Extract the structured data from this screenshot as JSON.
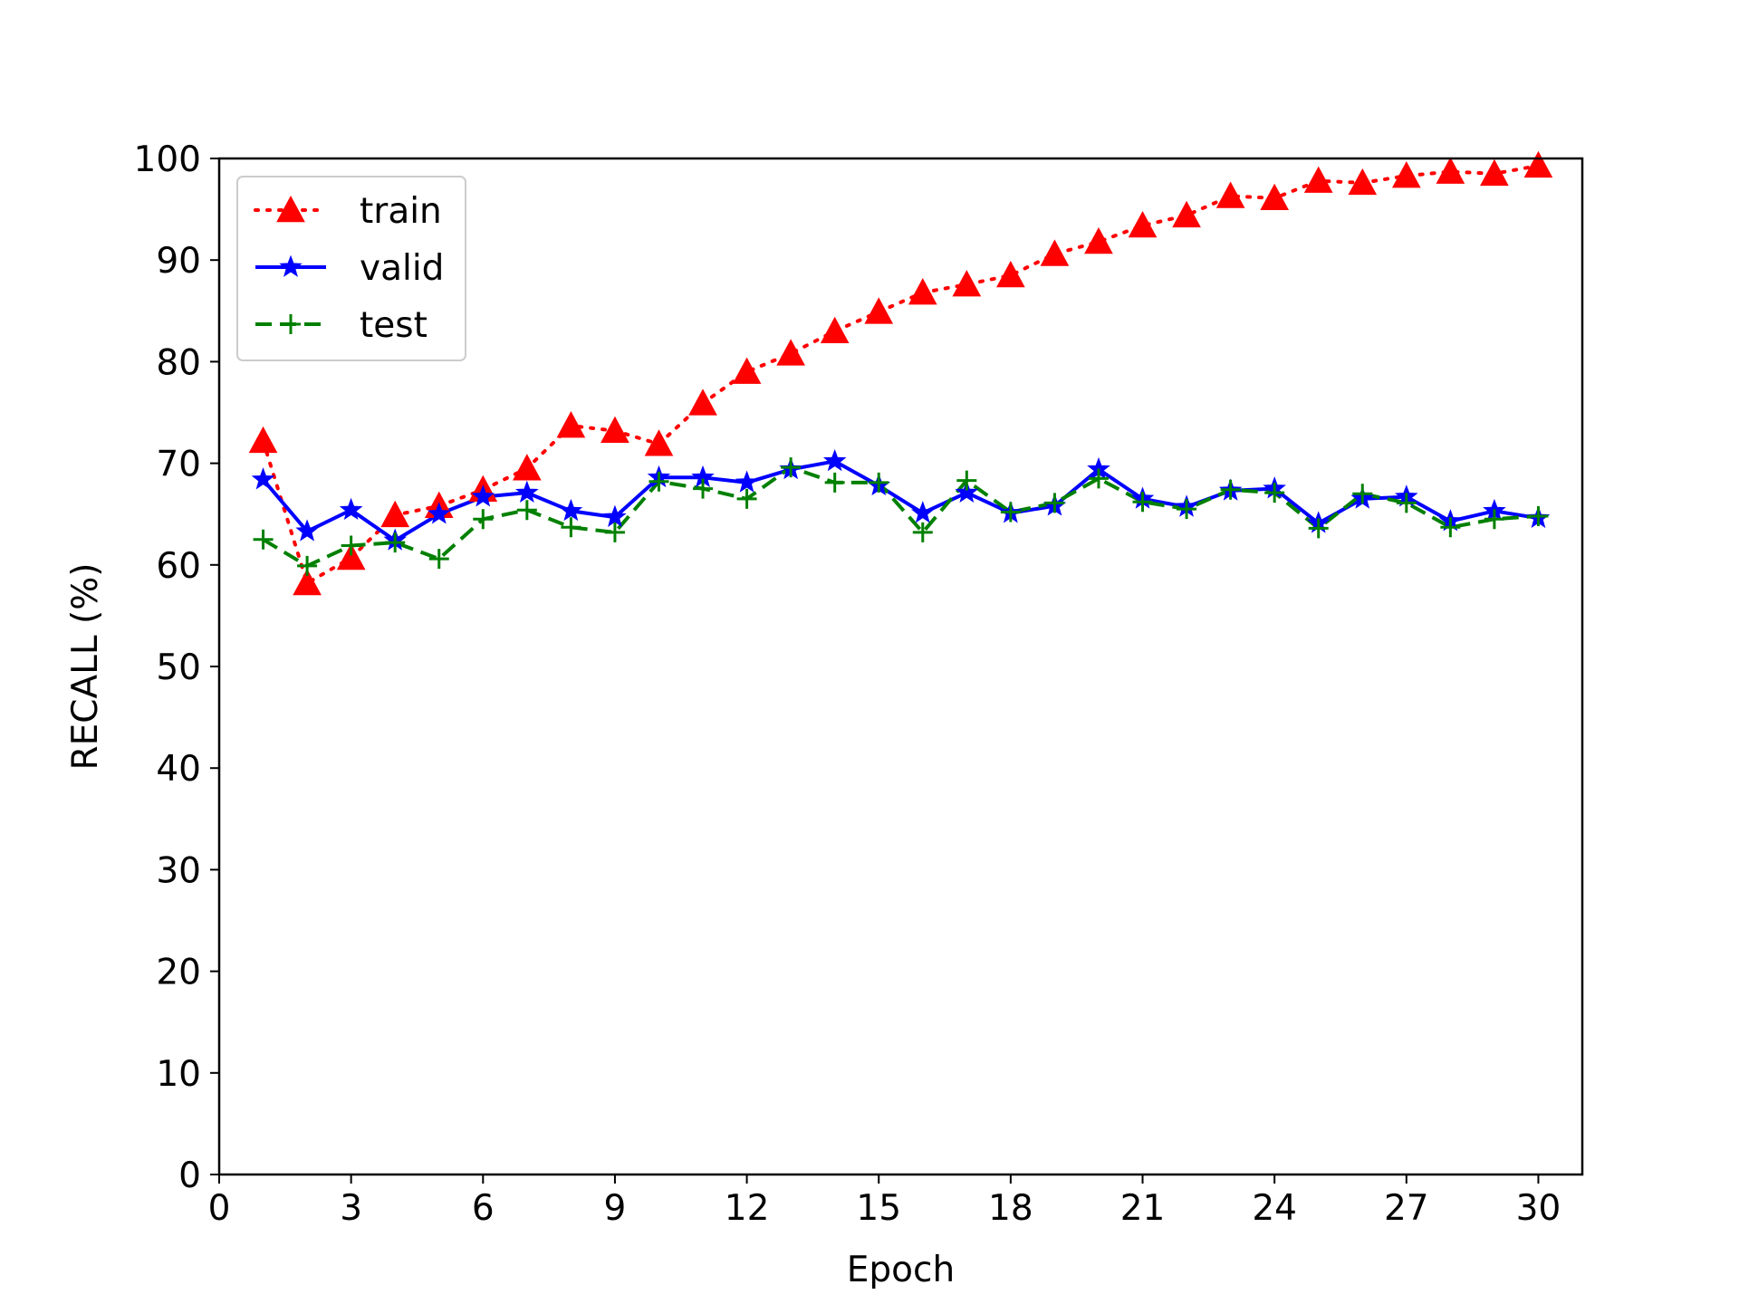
{
  "chart_data": {
    "type": "line",
    "title": "",
    "xlabel": "Epoch",
    "ylabel": "RECALL (%)",
    "xlim": [
      0,
      31
    ],
    "ylim": [
      0,
      100
    ],
    "x_ticks": [
      0,
      3,
      6,
      9,
      12,
      15,
      18,
      21,
      24,
      27,
      30
    ],
    "y_ticks": [
      0,
      10,
      20,
      30,
      40,
      50,
      60,
      70,
      80,
      90,
      100
    ],
    "grid": false,
    "legend_position": "top-left",
    "x": [
      1,
      2,
      3,
      4,
      5,
      6,
      7,
      8,
      9,
      10,
      11,
      12,
      13,
      14,
      15,
      16,
      17,
      18,
      19,
      20,
      21,
      22,
      23,
      24,
      25,
      26,
      27,
      28,
      29,
      30
    ],
    "series": [
      {
        "name": "train",
        "color": "#ff0000",
        "line_style": "dotted",
        "marker": "triangle",
        "values": [
          72.2,
          58.2,
          60.7,
          64.9,
          65.8,
          67.4,
          69.5,
          73.7,
          73.2,
          71.9,
          75.9,
          79.0,
          80.8,
          83.0,
          84.9,
          86.8,
          87.6,
          88.5,
          90.6,
          91.8,
          93.4,
          94.4,
          96.3,
          96.1,
          97.8,
          97.6,
          98.3,
          98.7,
          98.5,
          99.3
        ]
      },
      {
        "name": "valid",
        "color": "#0000ff",
        "line_style": "solid",
        "marker": "star",
        "values": [
          68.4,
          63.3,
          65.4,
          62.4,
          65.0,
          66.7,
          67.1,
          65.3,
          64.7,
          68.6,
          68.6,
          68.1,
          69.4,
          70.2,
          67.8,
          65.1,
          67.1,
          65.1,
          65.8,
          69.4,
          66.5,
          65.7,
          67.3,
          67.5,
          64.1,
          66.5,
          66.7,
          64.3,
          65.3,
          64.6
        ]
      },
      {
        "name": "test",
        "color": "#008000",
        "line_style": "dashed",
        "marker": "plus",
        "values": [
          62.5,
          59.9,
          61.9,
          62.2,
          60.6,
          64.5,
          65.4,
          63.7,
          63.2,
          68.2,
          67.5,
          66.5,
          69.6,
          68.1,
          68.1,
          63.2,
          68.3,
          65.2,
          66.1,
          68.5,
          66.2,
          65.5,
          67.4,
          67.1,
          63.6,
          67.0,
          66.1,
          63.7,
          64.5,
          64.8
        ]
      }
    ]
  }
}
